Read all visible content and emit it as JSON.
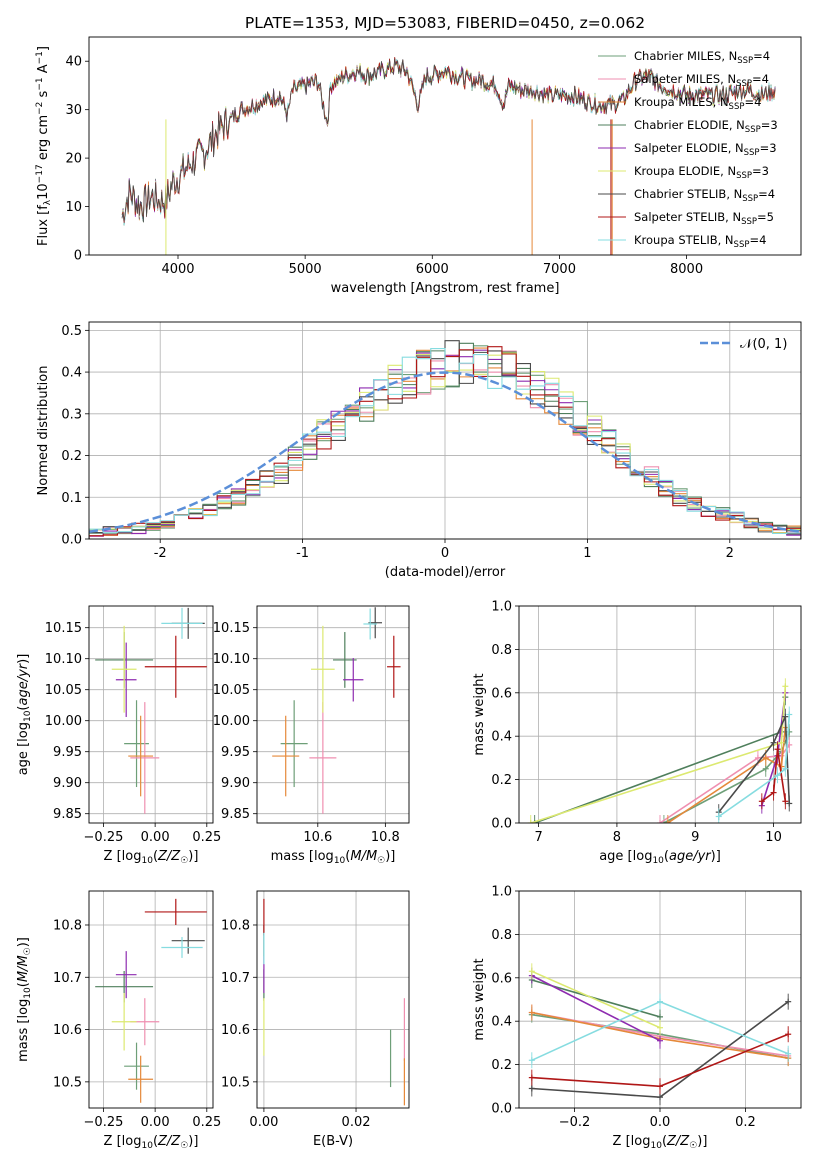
{
  "figure_title": "PLATE=1353, MJD=53083, FIBERID=0450, z=0.062",
  "models": [
    {
      "name": "Chabrier MILES",
      "nssp": "4",
      "color": "#6e9f78"
    },
    {
      "name": "Salpeter MILES",
      "nssp": "4",
      "color": "#ef8fb0"
    },
    {
      "name": "Kroupa MILES",
      "nssp": "4",
      "color": "#e5893a"
    },
    {
      "name": "Chabrier ELODIE",
      "nssp": "3",
      "color": "#4f7f5c"
    },
    {
      "name": "Salpeter ELODIE",
      "nssp": "3",
      "color": "#8e2bb0"
    },
    {
      "name": "Kroupa ELODIE",
      "nssp": "3",
      "color": "#dce970"
    },
    {
      "name": "Chabrier STELIB",
      "nssp": "4",
      "color": "#4a4a4a"
    },
    {
      "name": "Salpeter STELIB",
      "nssp": "5",
      "color": "#b01717"
    },
    {
      "name": "Kroupa STELIB",
      "nssp": "4",
      "color": "#86dce0"
    }
  ],
  "chart_data": [
    {
      "id": "spectrum",
      "type": "line",
      "title": "PLATE=1353, MJD=53083, FIBERID=0450, z=0.062",
      "xlabel": "wavelength [Angstrom, rest frame]",
      "ylabel": "Flux [f_λ 10^-17 erg cm^-2 s^-1 A^-1]",
      "xlim": [
        3300,
        8900
      ],
      "ylim": [
        0,
        45
      ],
      "xticks": [
        4000,
        5000,
        6000,
        7000,
        8000
      ],
      "yticks": [
        0,
        10,
        20,
        30,
        40
      ],
      "legend_position": "top-right",
      "x": [
        3560,
        3620,
        3700,
        3800,
        3900,
        3960,
        4000,
        4100,
        4200,
        4300,
        4400,
        4500,
        4600,
        4700,
        4800,
        4860,
        4900,
        5000,
        5100,
        5175,
        5200,
        5300,
        5400,
        5500,
        5600,
        5700,
        5800,
        5890,
        5950,
        6000,
        6100,
        6200,
        6300,
        6400,
        6500,
        6563,
        6600,
        6700,
        6800,
        6900,
        7000,
        7100,
        7200,
        7300,
        7400,
        7500,
        7600,
        7700,
        7800,
        7900,
        8000,
        8100,
        8200,
        8300,
        8400,
        8500,
        8600,
        8700
      ],
      "y": [
        8,
        13,
        10,
        12,
        11,
        15,
        16,
        19,
        21,
        25,
        28,
        30,
        31,
        32,
        33,
        29,
        34,
        35,
        36,
        27,
        35,
        37,
        38,
        37,
        38,
        39,
        38,
        31,
        37,
        37,
        38,
        37,
        36,
        36,
        35,
        31,
        35,
        34,
        34,
        33,
        33,
        33,
        32,
        31,
        31,
        32,
        36,
        37,
        35,
        34,
        33,
        33,
        33,
        33,
        34,
        34,
        33,
        34
      ]
    },
    {
      "id": "residual_histogram",
      "type": "bar",
      "xlabel": "(data-model)/error",
      "ylabel": "Normed distribution",
      "xlim": [
        -2.5,
        2.5
      ],
      "ylim": [
        0,
        0.52
      ],
      "xticks": [
        -2,
        -1,
        0,
        1,
        2
      ],
      "yticks": [
        0.0,
        0.1,
        0.2,
        0.3,
        0.4,
        0.5
      ],
      "grid": true,
      "legend": [
        "N(0,1)"
      ],
      "legend_position": "top-right",
      "bins_start": -2.5,
      "bin_width": 0.1,
      "values": [
        0.015,
        0.02,
        0.02,
        0.025,
        0.03,
        0.04,
        0.05,
        0.06,
        0.07,
        0.09,
        0.1,
        0.12,
        0.14,
        0.16,
        0.19,
        0.22,
        0.25,
        0.27,
        0.3,
        0.32,
        0.35,
        0.37,
        0.39,
        0.4,
        0.41,
        0.42,
        0.42,
        0.41,
        0.41,
        0.4,
        0.38,
        0.36,
        0.34,
        0.31,
        0.29,
        0.26,
        0.23,
        0.2,
        0.17,
        0.15,
        0.12,
        0.1,
        0.085,
        0.07,
        0.06,
        0.05,
        0.04,
        0.03,
        0.025,
        0.02
      ]
    },
    {
      "id": "age_vs_Z",
      "type": "scatter",
      "xlabel": "Z [log10(Z/Z☉)]",
      "ylabel": "age [log10(age/yr)]",
      "xlim": [
        -0.32,
        0.28
      ],
      "ylim": [
        9.835,
        10.185
      ],
      "xticks": [
        -0.25,
        0.0,
        0.25
      ],
      "xticklabels": [
        "−0.25",
        "0.00",
        "0.25"
      ],
      "yticks": [
        9.85,
        9.9,
        9.95,
        10.0,
        10.05,
        10.1,
        10.15
      ],
      "grid": true,
      "points": [
        {
          "model": "Chabrier MILES",
          "x": -0.09,
          "y": 9.963,
          "xerr": 0.06,
          "yerr": 0.07
        },
        {
          "model": "Salpeter MILES",
          "x": -0.05,
          "y": 9.94,
          "xerr": 0.07,
          "yerr": 0.09
        },
        {
          "model": "Kroupa MILES",
          "x": -0.07,
          "y": 9.943,
          "xerr": 0.06,
          "yerr": 0.065
        },
        {
          "model": "Chabrier ELODIE",
          "x": -0.15,
          "y": 10.098,
          "xerr": 0.14,
          "yerr": 0.045
        },
        {
          "model": "Salpeter ELODIE",
          "x": -0.14,
          "y": 10.066,
          "xerr": 0.05,
          "yerr": 0.06
        },
        {
          "model": "Kroupa ELODIE",
          "x": -0.15,
          "y": 10.083,
          "xerr": 0.06,
          "yerr": 0.07
        },
        {
          "model": "Chabrier STELIB",
          "x": 0.16,
          "y": 10.157,
          "xerr": 0.08,
          "yerr": 0.025
        },
        {
          "model": "Salpeter STELIB",
          "x": 0.1,
          "y": 10.087,
          "xerr": 0.15,
          "yerr": 0.05
        },
        {
          "model": "Kroupa STELIB",
          "x": 0.13,
          "y": 10.157,
          "xerr": 0.1,
          "yerr": 0.025
        }
      ]
    },
    {
      "id": "age_vs_mass",
      "type": "scatter",
      "xlabel": "mass [log10(M/M☉)]",
      "ylim": [
        9.835,
        10.185
      ],
      "xlim": [
        10.42,
        10.87
      ],
      "xticks": [
        10.6,
        10.8
      ],
      "yticks": [
        9.85,
        9.9,
        9.95,
        10.0,
        10.05,
        10.1,
        10.15
      ],
      "grid": true,
      "points": [
        {
          "model": "Chabrier MILES",
          "x": 10.53,
          "y": 9.963,
          "xerr": 0.04,
          "yerr": 0.07
        },
        {
          "model": "Salpeter MILES",
          "x": 10.615,
          "y": 9.94,
          "xerr": 0.04,
          "yerr": 0.09
        },
        {
          "model": "Kroupa MILES",
          "x": 10.505,
          "y": 9.943,
          "xerr": 0.04,
          "yerr": 0.065
        },
        {
          "model": "Chabrier ELODIE",
          "x": 10.68,
          "y": 10.098,
          "xerr": 0.035,
          "yerr": 0.045
        },
        {
          "model": "Salpeter ELODIE",
          "x": 10.705,
          "y": 10.066,
          "xerr": 0.03,
          "yerr": 0.035
        },
        {
          "model": "Kroupa ELODIE",
          "x": 10.615,
          "y": 10.083,
          "xerr": 0.035,
          "yerr": 0.07
        },
        {
          "model": "Chabrier STELIB",
          "x": 10.77,
          "y": 10.158,
          "xerr": 0.02,
          "yerr": 0.025
        },
        {
          "model": "Salpeter STELIB",
          "x": 10.825,
          "y": 10.087,
          "xerr": 0.02,
          "yerr": 0.05
        },
        {
          "model": "Kroupa STELIB",
          "x": 10.755,
          "y": 10.156,
          "xerr": 0.02,
          "yerr": 0.025
        }
      ]
    },
    {
      "id": "massweight_vs_age",
      "type": "line",
      "xlabel": "age [log10(age/yr)]",
      "ylabel": "mass weight",
      "xlim": [
        6.75,
        10.35
      ],
      "ylim": [
        0,
        1.0
      ],
      "xticks": [
        7,
        8,
        9,
        10
      ],
      "yticks": [
        0.0,
        0.2,
        0.4,
        0.6,
        0.8,
        1.0
      ],
      "grid": true,
      "series": [
        {
          "name": "Chabrier MILES",
          "x": [
            8.6,
            9.9,
            10.1,
            10.2
          ],
          "y": [
            0.0,
            0.25,
            0.33,
            0.42
          ]
        },
        {
          "name": "Salpeter MILES",
          "x": [
            8.55,
            9.8,
            10.1,
            10.2
          ],
          "y": [
            0.0,
            0.3,
            0.31,
            0.36
          ]
        },
        {
          "name": "Kroupa MILES",
          "x": [
            8.65,
            9.9,
            10.1,
            10.15
          ],
          "y": [
            0.0,
            0.3,
            0.26,
            0.44
          ]
        },
        {
          "name": "Chabrier ELODIE",
          "x": [
            6.95,
            10.1,
            10.15
          ],
          "y": [
            0.0,
            0.42,
            0.58
          ]
        },
        {
          "name": "Salpeter ELODIE",
          "x": [
            9.85,
            10.05,
            10.15
          ],
          "y": [
            0.08,
            0.31,
            0.6
          ]
        },
        {
          "name": "Kroupa ELODIE",
          "x": [
            6.9,
            10.1,
            10.15
          ],
          "y": [
            0.0,
            0.37,
            0.63
          ]
        },
        {
          "name": "Chabrier STELIB",
          "x": [
            9.3,
            10.0,
            10.15,
            10.2
          ],
          "y": [
            0.05,
            0.37,
            0.49,
            0.09
          ]
        },
        {
          "name": "Salpeter STELIB",
          "x": [
            9.85,
            10.0,
            10.05,
            10.15
          ],
          "y": [
            0.1,
            0.14,
            0.34,
            0.1
          ]
        },
        {
          "name": "Kroupa STELIB",
          "x": [
            9.3,
            10.05,
            10.15,
            10.2
          ],
          "y": [
            0.03,
            0.22,
            0.25,
            0.5
          ]
        }
      ]
    },
    {
      "id": "mass_vs_Z",
      "type": "scatter",
      "xlabel": "Z [log10(Z/Z☉)]",
      "ylabel": "mass [log10(M/M☉)]",
      "xlim": [
        -0.32,
        0.28
      ],
      "ylim": [
        10.45,
        10.865
      ],
      "xticks": [
        -0.25,
        0.0,
        0.25
      ],
      "xticklabels": [
        "−0.25",
        "0.00",
        "0.25"
      ],
      "yticks": [
        10.5,
        10.6,
        10.7,
        10.8
      ],
      "grid": true,
      "points": [
        {
          "model": "Chabrier MILES",
          "x": -0.09,
          "y": 10.53,
          "xerr": 0.06,
          "yerr": 0.045
        },
        {
          "model": "Salpeter MILES",
          "x": -0.05,
          "y": 10.615,
          "xerr": 0.07,
          "yerr": 0.045
        },
        {
          "model": "Kroupa MILES",
          "x": -0.07,
          "y": 10.505,
          "xerr": 0.06,
          "yerr": 0.045
        },
        {
          "model": "Chabrier ELODIE",
          "x": -0.15,
          "y": 10.682,
          "xerr": 0.14,
          "yerr": 0.03
        },
        {
          "model": "Salpeter ELODIE",
          "x": -0.14,
          "y": 10.705,
          "xerr": 0.05,
          "yerr": 0.045
        },
        {
          "model": "Kroupa ELODIE",
          "x": -0.15,
          "y": 10.615,
          "xerr": 0.06,
          "yerr": 0.055
        },
        {
          "model": "Chabrier STELIB",
          "x": 0.16,
          "y": 10.77,
          "xerr": 0.08,
          "yerr": 0.025
        },
        {
          "model": "Salpeter STELIB",
          "x": 0.1,
          "y": 10.825,
          "xerr": 0.15,
          "yerr": 0.025
        },
        {
          "model": "Kroupa STELIB",
          "x": 0.13,
          "y": 10.757,
          "xerr": 0.1,
          "yerr": 0.02
        }
      ]
    },
    {
      "id": "mass_vs_ebv",
      "type": "scatter",
      "xlabel": "E(B-V)",
      "xlim": [
        -0.0015,
        0.0315
      ],
      "ylim": [
        10.45,
        10.865
      ],
      "xticks": [
        0.0,
        0.02
      ],
      "xticklabels": [
        "0.00",
        "0.02"
      ],
      "yticks": [
        10.5,
        10.6,
        10.7,
        10.8
      ],
      "grid": true,
      "points": [
        {
          "model": "Chabrier MILES",
          "x": 0.0275,
          "y": 10.545,
          "xerr": 0,
          "yerr": 0.055
        },
        {
          "model": "Salpeter MILES",
          "x": 0.0305,
          "y": 10.6,
          "xerr": 0,
          "yerr": 0.06
        },
        {
          "model": "Kroupa MILES",
          "x": 0.0305,
          "y": 10.5,
          "xerr": 0,
          "yerr": 0.045
        },
        {
          "model": "Chabrier ELODIE",
          "x": 0.0,
          "y": 10.685,
          "xerr": 0,
          "yerr": 0.03
        },
        {
          "model": "Salpeter ELODIE",
          "x": 0.0,
          "y": 10.705,
          "xerr": 0,
          "yerr": 0.035
        },
        {
          "model": "Kroupa ELODIE",
          "x": 0.0,
          "y": 10.605,
          "xerr": 0,
          "yerr": 0.055
        },
        {
          "model": "Chabrier STELIB",
          "x": 0.0,
          "y": 10.77,
          "xerr": 0,
          "yerr": 0.03
        },
        {
          "model": "Salpeter STELIB",
          "x": 0.0,
          "y": 10.815,
          "xerr": 0,
          "yerr": 0.035
        },
        {
          "model": "Kroupa STELIB",
          "x": 0.0,
          "y": 10.755,
          "xerr": 0,
          "yerr": 0.03
        }
      ]
    },
    {
      "id": "massweight_vs_Z",
      "type": "line",
      "xlabel": "Z [log10(Z/Z☉)]",
      "ylabel": "mass weight",
      "xlim": [
        -0.33,
        0.33
      ],
      "ylim": [
        0,
        1.0
      ],
      "xticks": [
        -0.2,
        0.0,
        0.2
      ],
      "xticklabels": [
        "−0.2",
        "0.0",
        "0.2"
      ],
      "yticks": [
        0.0,
        0.2,
        0.4,
        0.6,
        0.8,
        1.0
      ],
      "grid": true,
      "series": [
        {
          "name": "Chabrier MILES",
          "x": [
            -0.3,
            0.0,
            0.3
          ],
          "y": [
            0.43,
            0.34,
            0.23
          ]
        },
        {
          "name": "Salpeter MILES",
          "x": [
            -0.3,
            0.0,
            0.3
          ],
          "y": [
            0.44,
            0.33,
            0.24
          ]
        },
        {
          "name": "Kroupa MILES",
          "x": [
            -0.3,
            0.0,
            0.3
          ],
          "y": [
            0.44,
            0.32,
            0.23
          ]
        },
        {
          "name": "Chabrier ELODIE",
          "x": [
            -0.3,
            0.0
          ],
          "y": [
            0.59,
            0.42
          ]
        },
        {
          "name": "Salpeter ELODIE",
          "x": [
            -0.3,
            0.0
          ],
          "y": [
            0.61,
            0.31
          ]
        },
        {
          "name": "Kroupa ELODIE",
          "x": [
            -0.3,
            0.0
          ],
          "y": [
            0.63,
            0.37
          ]
        },
        {
          "name": "Chabrier STELIB",
          "x": [
            -0.3,
            0.0,
            0.3
          ],
          "y": [
            0.09,
            0.05,
            0.49
          ]
        },
        {
          "name": "Salpeter STELIB",
          "x": [
            -0.3,
            0.0,
            0.3
          ],
          "y": [
            0.14,
            0.1,
            0.34
          ]
        },
        {
          "name": "Kroupa STELIB",
          "x": [
            -0.3,
            0.0,
            0.3
          ],
          "y": [
            0.22,
            0.49,
            0.25
          ]
        }
      ]
    }
  ]
}
